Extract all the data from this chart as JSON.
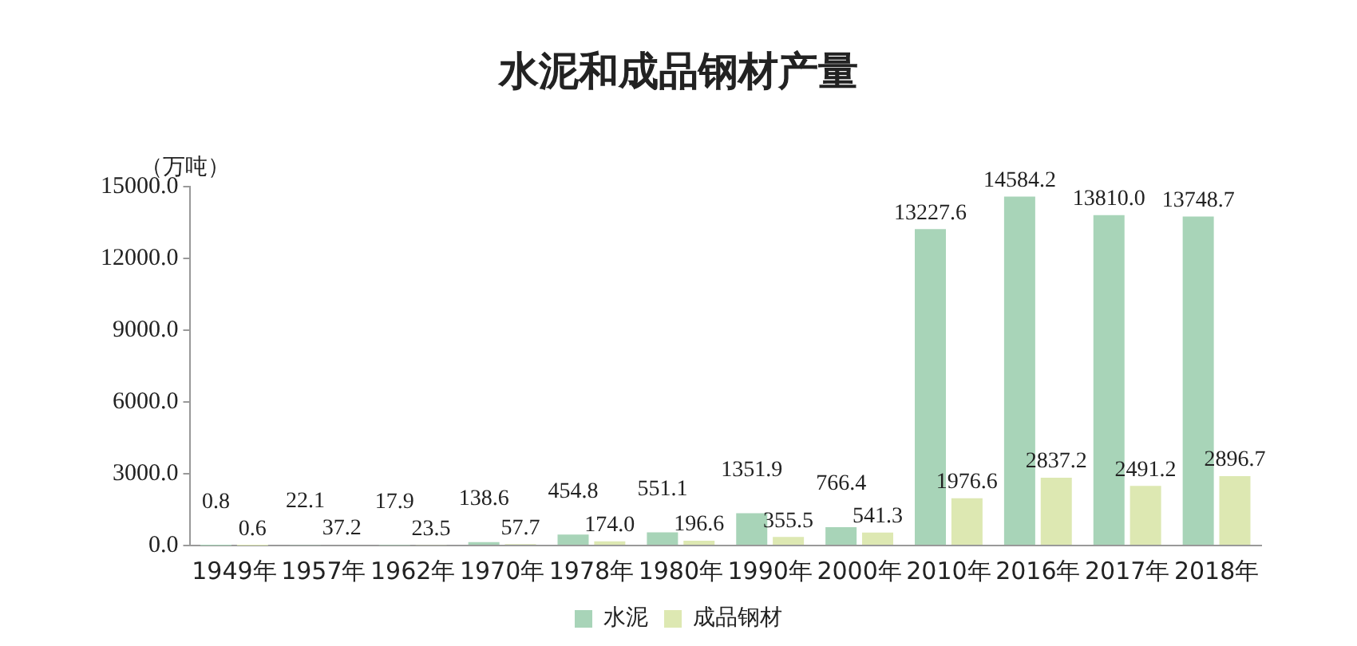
{
  "chart_data": {
    "type": "bar",
    "title": "水泥和成品钢材产量",
    "ylabel": "（万吨）",
    "categories": [
      "1949年",
      "1957年",
      "1962年",
      "1970年",
      "1978年",
      "1980年",
      "1990年",
      "2000年",
      "2010年",
      "2016年",
      "2017年",
      "2018年"
    ],
    "series": [
      {
        "name": "水泥",
        "color": "#a8d4b8",
        "values": [
          0.8,
          22.1,
          17.9,
          138.6,
          454.8,
          551.1,
          1351.9,
          766.4,
          13227.6,
          14584.2,
          13810.0,
          13748.7
        ],
        "value_labels": [
          "0.8",
          "22.1",
          "17.9",
          "138.6",
          "454.8",
          "551.1",
          "1351.9",
          "766.4",
          "13227.6",
          "14584.2",
          "13810.0",
          "13748.7"
        ]
      },
      {
        "name": "成品钢材",
        "color": "#dde8b2",
        "values": [
          0.6,
          37.2,
          23.5,
          57.7,
          174.0,
          196.6,
          355.5,
          541.3,
          1976.6,
          2837.2,
          2491.2,
          2896.7
        ],
        "value_labels": [
          "0.6",
          "37.2",
          "23.5",
          "57.7",
          "174.0",
          "196.6",
          "355.5",
          "541.3",
          "1976.6",
          "2837.2",
          "2491.2",
          "2896.7"
        ]
      }
    ],
    "ylim": [
      0,
      15000
    ],
    "yticks": [
      {
        "value": 0,
        "label": "0.0"
      },
      {
        "value": 3000,
        "label": "3000.0"
      },
      {
        "value": 6000,
        "label": "6000.0"
      },
      {
        "value": 9000,
        "label": "9000.0"
      },
      {
        "value": 12000,
        "label": "12000.0"
      },
      {
        "value": 15000,
        "label": "15000.0"
      }
    ],
    "grid": false,
    "legend": "bottom"
  }
}
